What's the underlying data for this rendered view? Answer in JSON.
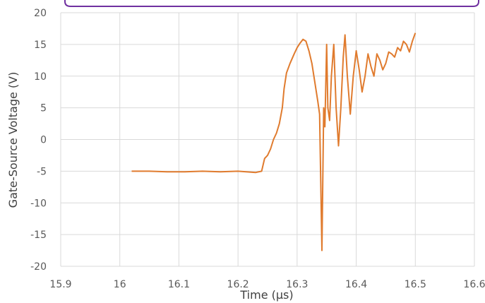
{
  "colors": {
    "series": "#e07b2e",
    "gridline": "#d9d9d9",
    "frame_accent": "#7030a0"
  },
  "chart_data": {
    "type": "line",
    "title": "",
    "xlabel": "Time (µs)",
    "ylabel": "Gate-Source Voltage (V)",
    "xlim": [
      15.9,
      16.6
    ],
    "ylim": [
      -20,
      20
    ],
    "x_ticks": [
      15.9,
      16.0,
      16.1,
      16.2,
      16.3,
      16.4,
      16.5,
      16.6
    ],
    "x_tick_labels": [
      "15.9",
      "16",
      "16.1",
      "16.2",
      "16.3",
      "16.4",
      "16.5",
      "16.6"
    ],
    "y_ticks": [
      20,
      15,
      10,
      5,
      0,
      -5,
      -10,
      -15,
      -20
    ],
    "y_tick_labels": [
      "20",
      "15",
      "10",
      "5",
      "0",
      "-5",
      "-10",
      "-15",
      "-20"
    ],
    "grid": true,
    "legend": "none",
    "series": [
      {
        "color": "#e07b2e",
        "points": [
          [
            16.02,
            -5.0
          ],
          [
            16.05,
            -5.0
          ],
          [
            16.08,
            -5.1
          ],
          [
            16.11,
            -5.1
          ],
          [
            16.14,
            -5.0
          ],
          [
            16.17,
            -5.1
          ],
          [
            16.2,
            -5.0
          ],
          [
            16.23,
            -5.2
          ],
          [
            16.24,
            -5.0
          ],
          [
            16.245,
            -3.0
          ],
          [
            16.25,
            -2.5
          ],
          [
            16.255,
            -1.5
          ],
          [
            16.26,
            0.0
          ],
          [
            16.265,
            1.0
          ],
          [
            16.27,
            2.5
          ],
          [
            16.275,
            5.0
          ],
          [
            16.278,
            8.0
          ],
          [
            16.282,
            10.5
          ],
          [
            16.288,
            12.0
          ],
          [
            16.295,
            13.5
          ],
          [
            16.3,
            14.5
          ],
          [
            16.305,
            15.2
          ],
          [
            16.31,
            15.8
          ],
          [
            16.315,
            15.5
          ],
          [
            16.32,
            14.0
          ],
          [
            16.325,
            12.0
          ],
          [
            16.33,
            9.0
          ],
          [
            16.335,
            6.0
          ],
          [
            16.338,
            4.0
          ],
          [
            16.342,
            -17.5
          ],
          [
            16.345,
            5.0
          ],
          [
            16.347,
            2.0
          ],
          [
            16.35,
            15.0
          ],
          [
            16.352,
            5.0
          ],
          [
            16.355,
            3.0
          ],
          [
            16.358,
            10.0
          ],
          [
            16.362,
            15.0
          ],
          [
            16.366,
            5.0
          ],
          [
            16.37,
            -1.0
          ],
          [
            16.374,
            5.0
          ],
          [
            16.378,
            13.0
          ],
          [
            16.381,
            16.5
          ],
          [
            16.385,
            10.0
          ],
          [
            16.39,
            4.0
          ],
          [
            16.395,
            10.0
          ],
          [
            16.4,
            14.0
          ],
          [
            16.405,
            11.0
          ],
          [
            16.41,
            7.5
          ],
          [
            16.415,
            10.0
          ],
          [
            16.42,
            13.5
          ],
          [
            16.425,
            11.5
          ],
          [
            16.43,
            10.0
          ],
          [
            16.435,
            13.5
          ],
          [
            16.44,
            12.5
          ],
          [
            16.445,
            11.0
          ],
          [
            16.45,
            12.0
          ],
          [
            16.455,
            13.8
          ],
          [
            16.46,
            13.5
          ],
          [
            16.465,
            13.0
          ],
          [
            16.47,
            14.5
          ],
          [
            16.475,
            14.0
          ],
          [
            16.48,
            15.5
          ],
          [
            16.485,
            15.0
          ],
          [
            16.49,
            13.8
          ],
          [
            16.495,
            15.5
          ],
          [
            16.5,
            16.8
          ]
        ]
      }
    ]
  }
}
